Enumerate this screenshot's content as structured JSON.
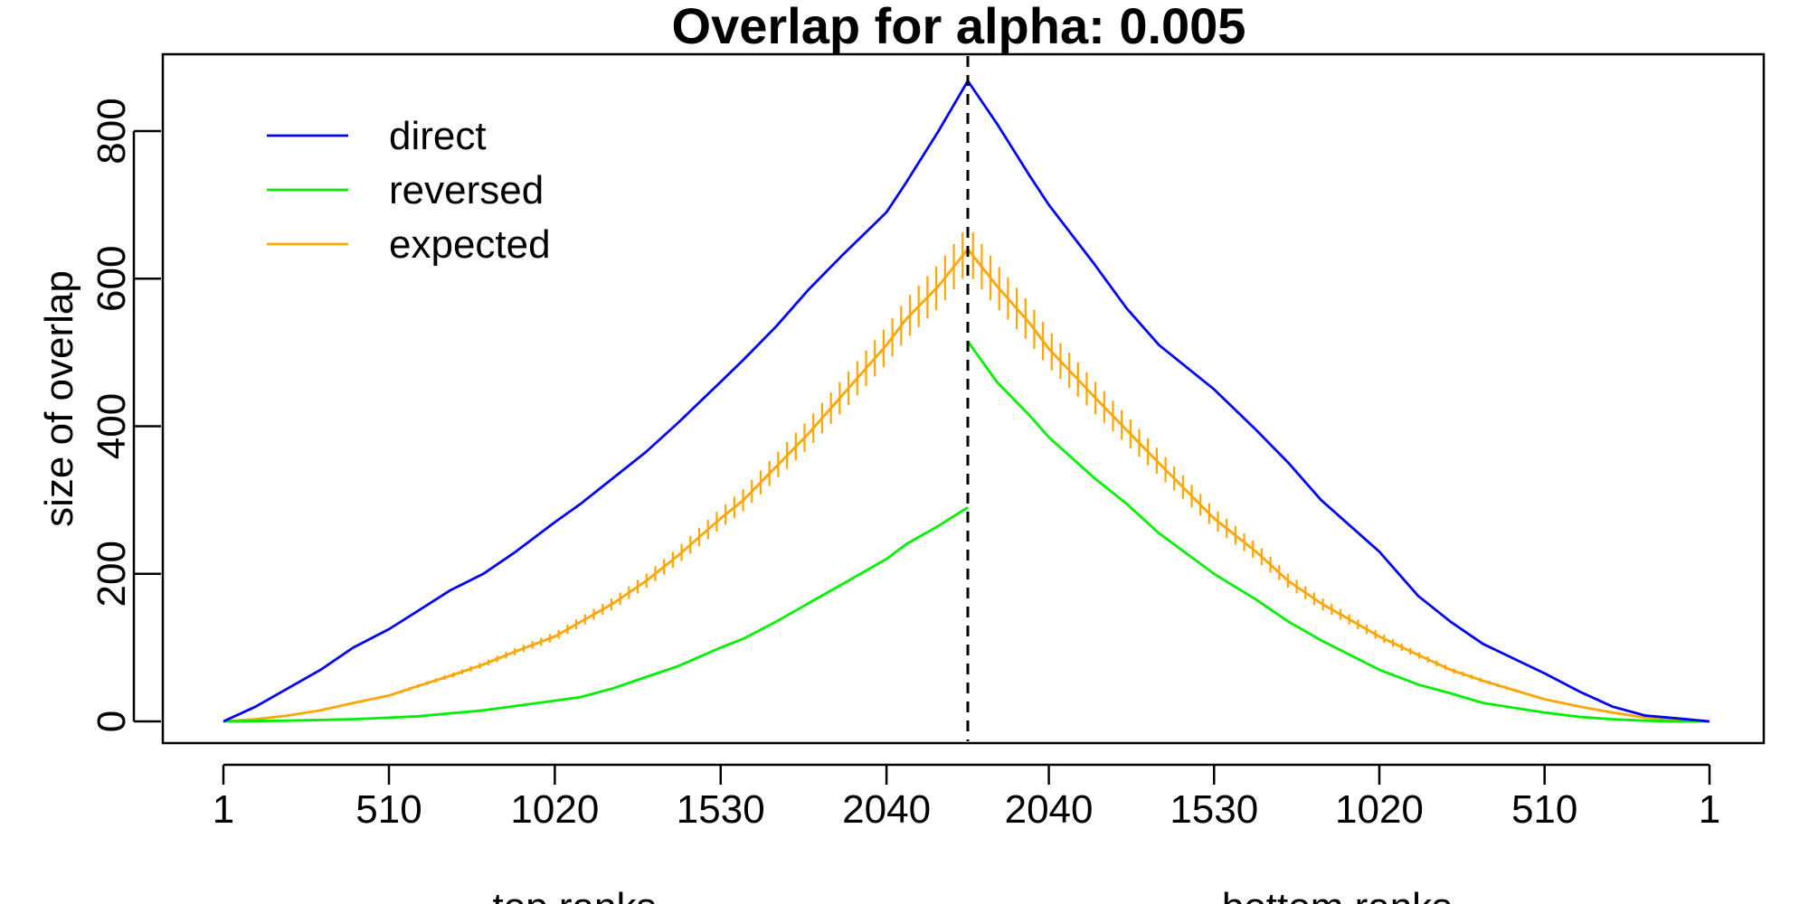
{
  "chart_data": {
    "type": "line",
    "title": "Overlap for alpha: 0.005",
    "ylabel": "size of overlap",
    "xlabel_left": "top ranks",
    "xlabel_right": "bottom ranks",
    "ylim": [
      0,
      900
    ],
    "y_ticks": [
      0,
      200,
      400,
      600,
      800
    ],
    "x_tick_labels": [
      "1",
      "510",
      "1020",
      "1530",
      "2040",
      "2040",
      "1530",
      "1020",
      "510",
      "1"
    ],
    "legend": {
      "position": "top-left",
      "entries": [
        "direct",
        "reversed",
        "expected"
      ]
    },
    "split_line": {
      "style": "dashed",
      "color": "#000000"
    },
    "x_axis_note": "Left half: top ranks 1 to ~2300 increasing; right half: bottom ranks ~2300 down to 1",
    "series": [
      {
        "name": "direct",
        "color": "#0000ee",
        "left": {
          "x": [
            1,
            100,
            200,
            300,
            400,
            510,
            600,
            700,
            800,
            900,
            1020,
            1100,
            1200,
            1300,
            1400,
            1530,
            1600,
            1700,
            1800,
            1900,
            2040,
            2100,
            2200,
            2290
          ],
          "y": [
            0,
            20,
            45,
            70,
            100,
            125,
            150,
            178,
            200,
            230,
            270,
            295,
            330,
            365,
            405,
            460,
            490,
            535,
            585,
            630,
            690,
            730,
            800,
            868
          ]
        },
        "right": {
          "x": [
            2290,
            2200,
            2100,
            2040,
            1900,
            1800,
            1700,
            1530,
            1400,
            1300,
            1200,
            1020,
            900,
            800,
            700,
            510,
            400,
            300,
            200,
            100,
            1
          ],
          "y": [
            868,
            810,
            740,
            700,
            620,
            560,
            510,
            450,
            395,
            350,
            300,
            230,
            170,
            135,
            105,
            65,
            40,
            20,
            8,
            4,
            0
          ]
        }
      },
      {
        "name": "reversed",
        "color": "#00ee00",
        "left": {
          "x": [
            1,
            200,
            400,
            510,
            600,
            800,
            1020,
            1100,
            1200,
            1300,
            1400,
            1530,
            1600,
            1700,
            1800,
            1900,
            2040,
            2100,
            2200,
            2290
          ],
          "y": [
            0,
            1,
            3,
            5,
            7,
            15,
            28,
            33,
            45,
            60,
            75,
            100,
            112,
            135,
            160,
            185,
            220,
            240,
            265,
            290
          ]
        },
        "right": {
          "x": [
            2290,
            2200,
            2100,
            2040,
            1900,
            1800,
            1700,
            1530,
            1400,
            1300,
            1200,
            1020,
            900,
            800,
            700,
            510,
            400,
            300,
            200,
            100,
            1
          ],
          "y": [
            515,
            460,
            415,
            385,
            330,
            295,
            255,
            200,
            165,
            135,
            110,
            70,
            50,
            38,
            25,
            12,
            6,
            3,
            1,
            0,
            0
          ]
        }
      },
      {
        "name": "expected",
        "color": "#ffa500",
        "error_bar_spread": 0.05,
        "left": {
          "x": [
            1,
            100,
            200,
            300,
            400,
            510,
            600,
            700,
            800,
            900,
            1020,
            1100,
            1200,
            1300,
            1400,
            1530,
            1600,
            1700,
            1800,
            1900,
            2040,
            2100,
            2200,
            2290
          ],
          "y": [
            0,
            3,
            8,
            15,
            25,
            35,
            48,
            62,
            77,
            95,
            115,
            135,
            160,
            190,
            225,
            275,
            300,
            345,
            390,
            440,
            510,
            545,
            590,
            640
          ]
        },
        "right": {
          "x": [
            2290,
            2200,
            2100,
            2040,
            1900,
            1800,
            1700,
            1530,
            1400,
            1300,
            1200,
            1020,
            900,
            800,
            700,
            510,
            400,
            300,
            200,
            100,
            1
          ],
          "y": [
            640,
            590,
            540,
            505,
            440,
            395,
            350,
            275,
            230,
            190,
            160,
            115,
            90,
            70,
            55,
            30,
            20,
            12,
            5,
            2,
            0
          ]
        }
      }
    ]
  }
}
